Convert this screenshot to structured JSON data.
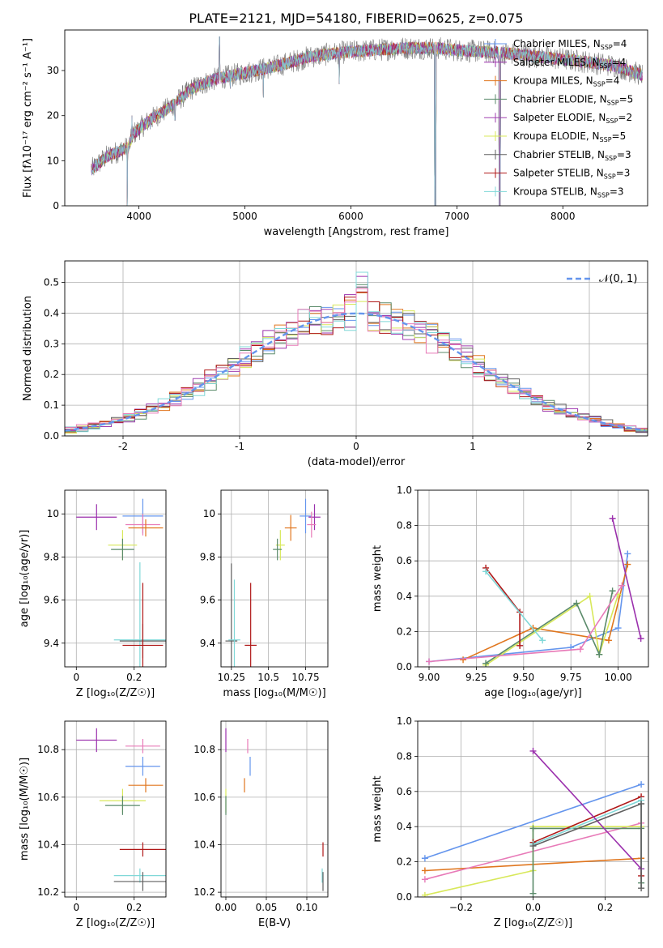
{
  "figure_title": "PLATE=2121, MJD=54180, FIBERID=0625, z=0.075",
  "series_colors": {
    "chabrier_miles": "#6495ed",
    "salpeter_miles": "#9b30ad",
    "kroupa_miles": "#e0761e",
    "chabrier_elodie": "#5a8a6a",
    "salpeter_elodie": "#a040b0",
    "kroupa_elodie": "#d8e85a",
    "chabrier_stelib": "#606060",
    "salpeter_stelib": "#b01818",
    "kroupa_stelib": "#80d8d8",
    "pink": "#e87ab8"
  },
  "chart_data": [
    {
      "id": "spectrum",
      "type": "line",
      "xlabel": "wavelength [Angstrom, rest frame]",
      "ylabel": "Flux [fλ10⁻¹⁷ erg cm⁻² s⁻¹ A⁻¹]",
      "xlim": [
        3300,
        8800
      ],
      "ylim": [
        0,
        39
      ],
      "xticks": [
        4000,
        5000,
        6000,
        7000,
        8000
      ],
      "yticks": [
        0,
        10,
        20,
        30
      ],
      "legend_placement": "right",
      "legend": [
        {
          "label": "Chabrier MILES, N",
          "sub": "SSP",
          "suffix": "=4",
          "color": "#6495ed"
        },
        {
          "label": "Salpeter MILES, N",
          "sub": "SSP",
          "suffix": "=4",
          "color": "#9b30ad"
        },
        {
          "label": "Kroupa MILES, N",
          "sub": "SSP",
          "suffix": "=4",
          "color": "#e0761e"
        },
        {
          "label": "Chabrier ELODIE, N",
          "sub": "SSP",
          "suffix": "=5",
          "color": "#5a8a6a"
        },
        {
          "label": "Salpeter ELODIE, N",
          "sub": "SSP",
          "suffix": "=2",
          "color": "#a040b0"
        },
        {
          "label": "Kroupa ELODIE, N",
          "sub": "SSP",
          "suffix": "=5",
          "color": "#d8e85a"
        },
        {
          "label": "Chabrier STELIB, N",
          "sub": "SSP",
          "suffix": "=3",
          "color": "#606060"
        },
        {
          "label": "Salpeter STELIB, N",
          "sub": "SSP",
          "suffix": "=3",
          "color": "#b01818"
        },
        {
          "label": "Kroupa STELIB, N",
          "sub": "SSP",
          "suffix": "=3",
          "color": "#80d8d8"
        }
      ],
      "continuum": [
        [
          3550,
          8
        ],
        [
          3700,
          11
        ],
        [
          3900,
          13
        ],
        [
          3950,
          16
        ],
        [
          4100,
          19
        ],
        [
          4300,
          22
        ],
        [
          4500,
          26
        ],
        [
          4700,
          28
        ],
        [
          4900,
          29
        ],
        [
          5100,
          30
        ],
        [
          5300,
          31
        ],
        [
          5600,
          33
        ],
        [
          5900,
          34
        ],
        [
          6200,
          34.5
        ],
        [
          6500,
          35
        ],
        [
          6800,
          35
        ],
        [
          7000,
          34.5
        ],
        [
          7400,
          34
        ],
        [
          7800,
          33
        ],
        [
          8200,
          32
        ],
        [
          8500,
          31
        ],
        [
          8750,
          29
        ]
      ],
      "spikes": [
        [
          3890,
          0
        ],
        [
          3935,
          20
        ],
        [
          4105,
          17
        ],
        [
          4340,
          19
        ],
        [
          4760,
          37.5
        ],
        [
          4862,
          26
        ],
        [
          5175,
          24
        ],
        [
          5890,
          27
        ],
        [
          6790,
          0
        ],
        [
          6800,
          0
        ],
        [
          7400,
          0
        ],
        [
          7410,
          0
        ]
      ]
    },
    {
      "id": "residuals",
      "type": "histogram",
      "xlabel": "(data-model)/error",
      "ylabel": "Normed distribution",
      "xlim": [
        -2.5,
        2.5
      ],
      "ylim": [
        0,
        0.57
      ],
      "xticks": [
        -2,
        -1,
        0,
        1,
        2
      ],
      "yticks": [
        0.0,
        0.1,
        0.2,
        0.3,
        0.4,
        0.5
      ],
      "grid": true,
      "legend_placement": "top-right",
      "reference_label": "𝒩(0, 1)",
      "reference_color": "#6495ed",
      "bin_width": 0.1
    },
    {
      "id": "age_vs_Z",
      "type": "errorbar",
      "xlabel": "Z [log₁₀(Z/Z☉)]",
      "ylabel": "age  [log₁₀(age/yr)]",
      "xlim": [
        -0.04,
        0.31
      ],
      "ylim": [
        9.29,
        10.11
      ],
      "xticks": [
        0.0,
        0.2
      ],
      "yticks": [
        9.4,
        9.6,
        9.8,
        10.0
      ],
      "grid": true,
      "points": [
        {
          "x": 0.23,
          "y": 9.99,
          "xerr": 0.07,
          "yerr": 0.08,
          "color": "#6495ed"
        },
        {
          "x": 0.07,
          "y": 9.985,
          "xerr": 0.07,
          "yerr": 0.06,
          "color": "#9b30ad"
        },
        {
          "x": 0.23,
          "y": 9.95,
          "xerr": 0.06,
          "yerr": 0.05,
          "color": "#e87ab8"
        },
        {
          "x": 0.24,
          "y": 9.935,
          "xerr": 0.06,
          "yerr": 0.04,
          "color": "#e0761e"
        },
        {
          "x": 0.16,
          "y": 9.855,
          "xerr": 0.05,
          "yerr": 0.07,
          "color": "#d8e85a"
        },
        {
          "x": 0.16,
          "y": 9.835,
          "xerr": 0.04,
          "yerr": 0.05,
          "color": "#5a8a6a"
        },
        {
          "x": 0.22,
          "y": 9.415,
          "xerr": 0.09,
          "yerr": 0.36,
          "color": "#80d8d8"
        },
        {
          "x": 0.23,
          "y": 9.41,
          "xerr": 0.08,
          "yerr": 0.08,
          "color": "#606060"
        },
        {
          "x": 0.23,
          "y": 9.39,
          "xerr": 0.07,
          "yerr": 0.29,
          "color": "#b01818"
        }
      ]
    },
    {
      "id": "age_vs_mass",
      "type": "errorbar",
      "xlabel": "mass [log₁₀(M/M☉)]",
      "ylabel": "",
      "xlim": [
        10.18,
        10.9
      ],
      "ylim": [
        9.29,
        10.11
      ],
      "xticks": [
        10.25,
        10.5,
        10.75
      ],
      "yticks": [
        9.4,
        9.6,
        9.8,
        10.0
      ],
      "grid": true,
      "points": [
        {
          "x": 10.81,
          "y": 9.985,
          "xerr": 0.04,
          "yerr": 0.06,
          "color": "#9b30ad"
        },
        {
          "x": 10.75,
          "y": 9.99,
          "xerr": 0.04,
          "yerr": 0.08,
          "color": "#6495ed"
        },
        {
          "x": 10.79,
          "y": 9.95,
          "xerr": 0.03,
          "yerr": 0.06,
          "color": "#e87ab8"
        },
        {
          "x": 10.65,
          "y": 9.935,
          "xerr": 0.04,
          "yerr": 0.06,
          "color": "#e0761e"
        },
        {
          "x": 10.58,
          "y": 9.855,
          "xerr": 0.03,
          "yerr": 0.07,
          "color": "#d8e85a"
        },
        {
          "x": 10.56,
          "y": 9.835,
          "xerr": 0.03,
          "yerr": 0.05,
          "color": "#5a8a6a"
        },
        {
          "x": 10.25,
          "y": 9.41,
          "xerr": 0.04,
          "yerr": 0.36,
          "color": "#606060"
        },
        {
          "x": 10.27,
          "y": 9.415,
          "xerr": 0.04,
          "yerr": 0.28,
          "color": "#80d8d8"
        },
        {
          "x": 10.38,
          "y": 9.39,
          "xerr": 0.04,
          "yerr": 0.29,
          "color": "#b01818"
        }
      ]
    },
    {
      "id": "weight_vs_age",
      "type": "line",
      "xlabel": "age  [log₁₀(age/yr)]",
      "ylabel": "mass weight",
      "xlim": [
        8.94,
        10.16
      ],
      "ylim": [
        0,
        1.0
      ],
      "xticks": [
        9.0,
        9.25,
        9.5,
        9.75,
        10.0
      ],
      "xticklabels": [
        "9.00",
        "9.25",
        "9.50",
        "9.75",
        "10.00"
      ],
      "yticks": [
        0.0,
        0.2,
        0.4,
        0.6,
        0.8,
        1.0
      ],
      "grid": true,
      "series": [
        {
          "color": "#6495ed",
          "points": [
            [
              9.0,
              0.03
            ],
            [
              9.75,
              0.11
            ],
            [
              10.0,
              0.22
            ],
            [
              10.05,
              0.64
            ]
          ]
        },
        {
          "color": "#e0761e",
          "points": [
            [
              9.18,
              0.04
            ],
            [
              9.55,
              0.22
            ],
            [
              9.95,
              0.15
            ],
            [
              10.05,
              0.58
            ]
          ]
        },
        {
          "color": "#d8e85a",
          "points": [
            [
              9.3,
              0.01
            ],
            [
              9.85,
              0.4
            ],
            [
              9.9,
              0.07
            ],
            [
              10.0,
              0.41
            ]
          ]
        },
        {
          "color": "#5a8a6a",
          "points": [
            [
              9.3,
              0.02
            ],
            [
              9.78,
              0.36
            ],
            [
              9.9,
              0.07
            ],
            [
              9.97,
              0.43
            ]
          ]
        },
        {
          "color": "#e87ab8",
          "points": [
            [
              9.0,
              0.03
            ],
            [
              9.8,
              0.1
            ],
            [
              10.02,
              0.46
            ]
          ]
        },
        {
          "color": "#9b30ad",
          "points": [
            [
              9.97,
              0.84
            ],
            [
              10.12,
              0.16
            ]
          ]
        },
        {
          "color": "#b01818",
          "points": [
            [
              9.3,
              0.56
            ],
            [
              9.48,
              0.31
            ],
            [
              9.48,
              0.12
            ]
          ]
        },
        {
          "color": "#80d8d8",
          "points": [
            [
              9.3,
              0.54
            ],
            [
              9.6,
              0.15
            ]
          ]
        }
      ]
    },
    {
      "id": "mass_vs_Z",
      "type": "errorbar",
      "xlabel": "Z [log₁₀(Z/Z☉)]",
      "ylabel": "mass [log₁₀(M/M☉)]",
      "xlim": [
        -0.04,
        0.31
      ],
      "ylim": [
        10.18,
        10.92
      ],
      "xticks": [
        0.0,
        0.2
      ],
      "yticks": [
        10.2,
        10.4,
        10.6,
        10.8
      ],
      "grid": true,
      "points": [
        {
          "x": 0.07,
          "y": 10.84,
          "xerr": 0.07,
          "yerr": 0.05,
          "color": "#9b30ad"
        },
        {
          "x": 0.23,
          "y": 10.815,
          "xerr": 0.06,
          "yerr": 0.03,
          "color": "#e87ab8"
        },
        {
          "x": 0.23,
          "y": 10.73,
          "xerr": 0.06,
          "yerr": 0.04,
          "color": "#6495ed"
        },
        {
          "x": 0.24,
          "y": 10.65,
          "xerr": 0.06,
          "yerr": 0.03,
          "color": "#e0761e"
        },
        {
          "x": 0.16,
          "y": 10.585,
          "xerr": 0.08,
          "yerr": 0.05,
          "color": "#d8e85a"
        },
        {
          "x": 0.16,
          "y": 10.565,
          "xerr": 0.06,
          "yerr": 0.04,
          "color": "#5a8a6a"
        },
        {
          "x": 0.23,
          "y": 10.38,
          "xerr": 0.08,
          "yerr": 0.03,
          "color": "#b01818"
        },
        {
          "x": 0.22,
          "y": 10.27,
          "xerr": 0.09,
          "yerr": 0.03,
          "color": "#80d8d8"
        },
        {
          "x": 0.23,
          "y": 10.245,
          "xerr": 0.1,
          "yerr": 0.04,
          "color": "#606060"
        }
      ]
    },
    {
      "id": "mass_vs_ebv",
      "type": "errorbar",
      "xlabel": "E(B-V)",
      "ylabel": "",
      "xlim": [
        -0.006,
        0.126
      ],
      "ylim": [
        10.18,
        10.92
      ],
      "xticks": [
        0.0,
        0.05,
        0.1
      ],
      "xticklabels": [
        "0.00",
        "0.05",
        "0.10"
      ],
      "yticks": [
        10.2,
        10.4,
        10.6,
        10.8
      ],
      "grid": true,
      "points": [
        {
          "x": 0.0,
          "y": 10.84,
          "xerr": 0,
          "yerr": 0.05,
          "color": "#9b30ad"
        },
        {
          "x": 0.027,
          "y": 10.815,
          "xerr": 0,
          "yerr": 0.03,
          "color": "#e87ab8"
        },
        {
          "x": 0.03,
          "y": 10.73,
          "xerr": 0,
          "yerr": 0.04,
          "color": "#6495ed"
        },
        {
          "x": 0.023,
          "y": 10.65,
          "xerr": 0,
          "yerr": 0.03,
          "color": "#e0761e"
        },
        {
          "x": 0.0,
          "y": 10.585,
          "xerr": 0,
          "yerr": 0.05,
          "color": "#d8e85a"
        },
        {
          "x": 0.0,
          "y": 10.565,
          "xerr": 0,
          "yerr": 0.04,
          "color": "#5a8a6a"
        },
        {
          "x": 0.12,
          "y": 10.38,
          "xerr": 0,
          "yerr": 0.03,
          "color": "#b01818"
        },
        {
          "x": 0.119,
          "y": 10.27,
          "xerr": 0,
          "yerr": 0.03,
          "color": "#80d8d8"
        },
        {
          "x": 0.12,
          "y": 10.245,
          "xerr": 0,
          "yerr": 0.04,
          "color": "#606060"
        }
      ]
    },
    {
      "id": "weight_vs_Z",
      "type": "line",
      "xlabel": "Z [log₁₀(Z/Z☉)]",
      "ylabel": "mass weight",
      "xlim": [
        -0.32,
        0.32
      ],
      "ylim": [
        0,
        1.0
      ],
      "xticks": [
        -0.2,
        0.0,
        0.2
      ],
      "xticklabels": [
        "−0.2",
        "0.0",
        "0.2"
      ],
      "yticks": [
        0.0,
        0.2,
        0.4,
        0.6,
        0.8,
        1.0
      ],
      "grid": true,
      "series": [
        {
          "color": "#6495ed",
          "points": [
            [
              -0.3,
              0.22
            ],
            [
              0.3,
              0.64
            ]
          ]
        },
        {
          "color": "#e0761e",
          "points": [
            [
              -0.3,
              0.15
            ],
            [
              0.3,
              0.22
            ]
          ]
        },
        {
          "color": "#e87ab8",
          "points": [
            [
              -0.3,
              0.1
            ],
            [
              0.3,
              0.42
            ]
          ]
        },
        {
          "color": "#d8e85a",
          "points": [
            [
              -0.3,
              0.01
            ],
            [
              0.0,
              0.15
            ],
            [
              0.0,
              0.4
            ],
            [
              0.3,
              0.4
            ]
          ]
        },
        {
          "color": "#5a8a6a",
          "points": [
            [
              0.0,
              0.02
            ],
            [
              0.0,
              0.39
            ],
            [
              0.3,
              0.39
            ],
            [
              0.3,
              0.08
            ]
          ]
        },
        {
          "color": "#b01818",
          "points": [
            [
              0.0,
              0.31
            ],
            [
              0.3,
              0.57
            ],
            [
              0.3,
              0.12
            ]
          ]
        },
        {
          "color": "#80d8d8",
          "points": [
            [
              0.0,
              0.3
            ],
            [
              0.3,
              0.55
            ],
            [
              0.3,
              0.16
            ]
          ]
        },
        {
          "color": "#9b30ad",
          "points": [
            [
              0.0,
              0.83
            ],
            [
              0.3,
              0.16
            ]
          ]
        },
        {
          "color": "#606060",
          "points": [
            [
              0.0,
              0.29
            ],
            [
              0.3,
              0.53
            ],
            [
              0.3,
              0.05
            ]
          ]
        }
      ]
    }
  ]
}
